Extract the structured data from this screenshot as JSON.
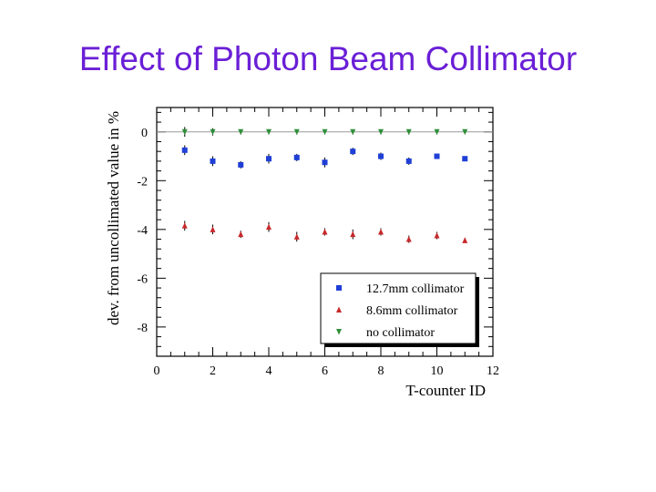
{
  "slide": {
    "title": "Effect of Photon Beam Collimator"
  },
  "colors": {
    "title": "#6a1fd6",
    "series_blue": "#1f3fd6",
    "series_red": "#c8282a",
    "series_green": "#2f8f3a"
  },
  "chart_data": {
    "type": "scatter",
    "title": "",
    "xlabel": "T-counter ID",
    "ylabel": "dev. from uncollimated value in %",
    "xlim": [
      0,
      12
    ],
    "ylim": [
      -9.2,
      1.0
    ],
    "xticks": [
      0,
      2,
      4,
      6,
      8,
      10,
      12
    ],
    "yticks": [
      0,
      -2,
      -4,
      -6,
      -8
    ],
    "grid": false,
    "legend_position": "bottom-right",
    "series": [
      {
        "name": "12.7mm collimator",
        "color": "#1f3fd6",
        "marker": "square",
        "x": [
          1,
          2,
          3,
          4,
          5,
          6,
          7,
          8,
          9,
          10,
          11
        ],
        "y": [
          -0.75,
          -1.2,
          -1.35,
          -1.1,
          -1.05,
          -1.25,
          -0.8,
          -1.0,
          -1.2,
          -1.0,
          -1.1
        ],
        "err": [
          0.2,
          0.2,
          0.15,
          0.2,
          0.15,
          0.2,
          0.15,
          0.15,
          0.15,
          0.1,
          0.1
        ]
      },
      {
        "name": "8.6mm collimator",
        "color": "#c8282a",
        "marker": "triangle-up",
        "x": [
          1,
          2,
          3,
          4,
          5,
          6,
          7,
          8,
          9,
          10,
          11
        ],
        "y": [
          -3.85,
          -4.0,
          -4.2,
          -3.9,
          -4.3,
          -4.1,
          -4.2,
          -4.1,
          -4.4,
          -4.25,
          -4.45
        ],
        "err": [
          0.2,
          0.2,
          0.15,
          0.2,
          0.2,
          0.15,
          0.2,
          0.15,
          0.15,
          0.15,
          0.1
        ]
      },
      {
        "name": "no collimator",
        "color": "#2f8f3a",
        "marker": "triangle-down",
        "x": [
          1,
          2,
          3,
          4,
          5,
          6,
          7,
          8,
          9,
          10,
          11
        ],
        "y": [
          0.0,
          0.0,
          0.0,
          0.0,
          0.0,
          0.0,
          0.0,
          0.0,
          0.0,
          0.0,
          0.0
        ],
        "err": [
          0.2,
          0.15,
          0.1,
          0.1,
          0.1,
          0.1,
          0.1,
          0.1,
          0.1,
          0.1,
          0.0
        ]
      }
    ]
  }
}
